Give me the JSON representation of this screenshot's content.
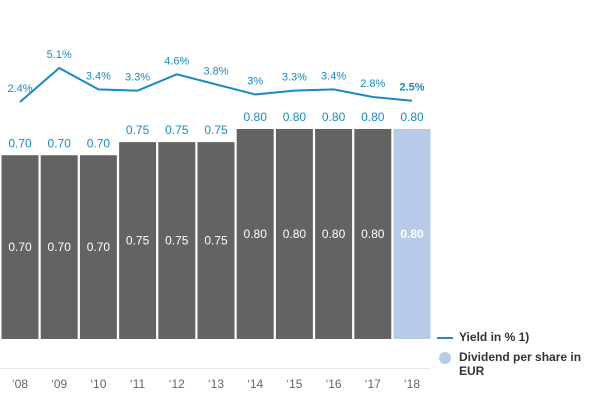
{
  "chart_data": {
    "type": "bar+line",
    "categories": [
      "‘08",
      "‘09",
      "‘10",
      "‘11",
      "‘12",
      "‘13",
      "‘14",
      "‘15",
      "‘16",
      "‘17",
      "‘18"
    ],
    "series": [
      {
        "name": "Dividend per share in EUR",
        "type": "bar",
        "values": [
          0.7,
          0.7,
          0.7,
          0.75,
          0.75,
          0.75,
          0.8,
          0.8,
          0.8,
          0.8,
          0.8
        ],
        "labels": [
          "0.70",
          "0.70",
          "0.70",
          "0.75",
          "0.75",
          "0.75",
          "0.80",
          "0.80",
          "0.80",
          "0.80",
          "0.80"
        ]
      },
      {
        "name": "Yield in % 1)",
        "type": "line",
        "values": [
          2.4,
          5.1,
          3.4,
          3.3,
          4.6,
          3.8,
          3.0,
          3.3,
          3.4,
          2.8,
          2.5
        ],
        "labels": [
          "2.4%",
          "5.1%",
          "3.4%",
          "3.3%",
          "4.6%",
          "3.8%",
          "3%",
          "3.3%",
          "3.4%",
          "2.8%",
          "2.5%"
        ]
      }
    ],
    "highlight_last": true,
    "colors": {
      "bar": "#636363",
      "bar_highlight": "#b7cbe8",
      "line": "#1a8ac2",
      "label": "#1a8ac2"
    },
    "legend": {
      "placement": "bottom-right"
    },
    "grid": false
  }
}
